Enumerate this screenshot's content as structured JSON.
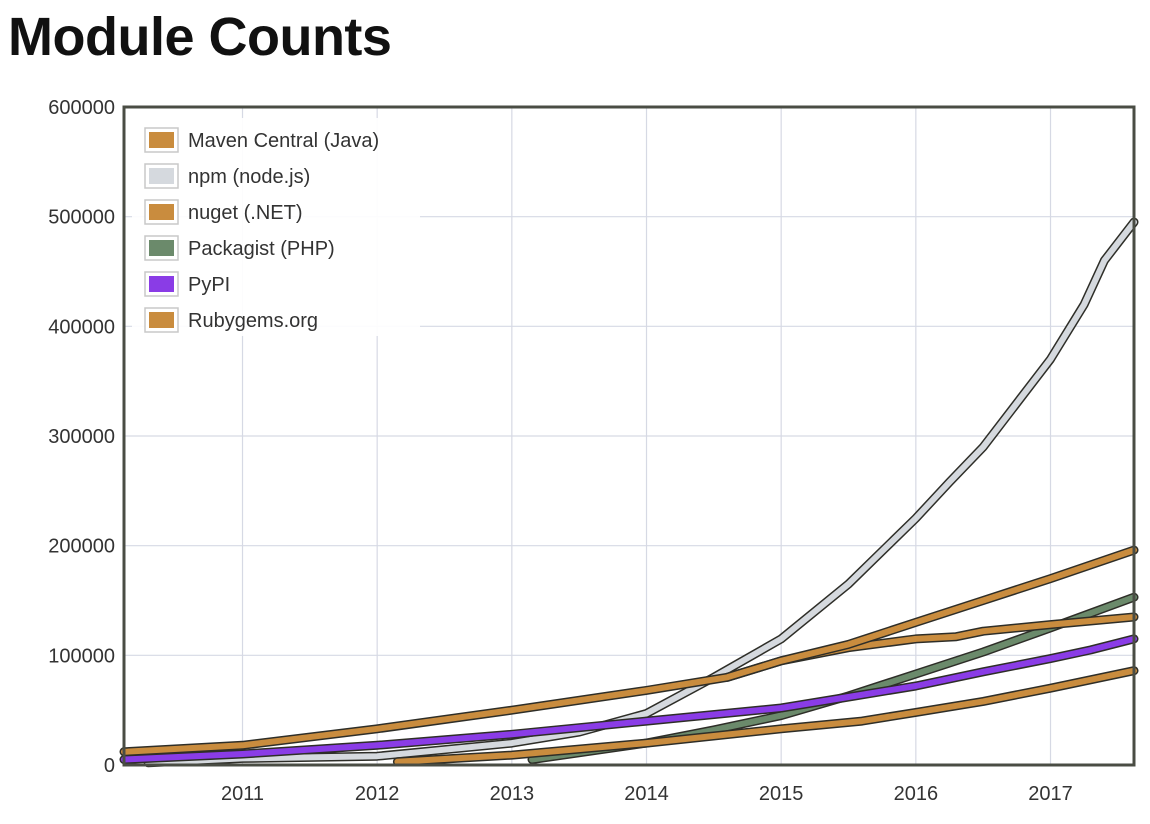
{
  "page": {
    "title": "Module Counts"
  },
  "chart_data": {
    "type": "line",
    "title": "Module Counts",
    "xlabel": "",
    "ylabel": "",
    "xlim": [
      2010.12,
      2017.62
    ],
    "ylim": [
      0,
      600000
    ],
    "x_ticks": [
      2011,
      2012,
      2013,
      2014,
      2015,
      2016,
      2017
    ],
    "y_ticks": [
      0,
      100000,
      200000,
      300000,
      400000,
      500000,
      600000
    ],
    "grid": true,
    "legend_position": "top-left",
    "series": [
      {
        "name": "Maven Central (Java)",
        "color": "#c98c3e",
        "x": [
          2010.12,
          2011.0,
          2012.0,
          2013.0,
          2014.0,
          2014.6,
          2015.0,
          2015.5,
          2016.0,
          2016.5,
          2017.0,
          2017.62
        ],
        "y": [
          12000,
          18000,
          33000,
          50000,
          68000,
          80000,
          95000,
          110000,
          130000,
          150000,
          170000,
          196000
        ]
      },
      {
        "name": "npm (node.js)",
        "color": "#d5d9de",
        "x": [
          2010.3,
          2011.0,
          2012.0,
          2013.0,
          2013.5,
          2014.0,
          2014.5,
          2015.0,
          2015.5,
          2016.0,
          2016.25,
          2016.5,
          2017.0,
          2017.25,
          2017.4,
          2017.62
        ],
        "y": [
          2000,
          6000,
          8000,
          20000,
          30000,
          47000,
          80000,
          115000,
          165000,
          225000,
          258000,
          290000,
          370000,
          420000,
          460000,
          495000
        ]
      },
      {
        "name": "nuget (.NET)",
        "color": "#c98c3e",
        "x": [
          2012.15,
          2013.0,
          2014.0,
          2015.0,
          2015.6,
          2016.0,
          2016.5,
          2017.0,
          2017.62
        ],
        "y": [
          3000,
          9000,
          20000,
          33000,
          40000,
          48000,
          58000,
          70000,
          86000
        ]
      },
      {
        "name": "Packagist (PHP)",
        "color": "#6b8a6b",
        "x": [
          2013.15,
          2014.0,
          2014.5,
          2015.0,
          2015.5,
          2016.0,
          2016.5,
          2017.0,
          2017.62
        ],
        "y": [
          5000,
          20000,
          32000,
          45000,
          63000,
          83000,
          103000,
          125000,
          153000
        ]
      },
      {
        "name": "PyPI",
        "color": "#8a3ce6",
        "x": [
          2010.12,
          2011.0,
          2012.0,
          2013.0,
          2014.0,
          2015.0,
          2015.5,
          2016.0,
          2016.5,
          2017.0,
          2017.3,
          2017.62
        ],
        "y": [
          5000,
          10000,
          18000,
          28000,
          40000,
          52000,
          62000,
          72000,
          85000,
          97000,
          105000,
          115000
        ]
      },
      {
        "name": "Rubygems.org",
        "color": "#c98c3e",
        "x": [
          2014.6,
          2015.0,
          2015.5,
          2016.0,
          2016.3,
          2016.5,
          2017.0,
          2017.62
        ],
        "y": [
          80000,
          95000,
          107000,
          115000,
          117000,
          122000,
          128000,
          135000
        ]
      }
    ]
  }
}
